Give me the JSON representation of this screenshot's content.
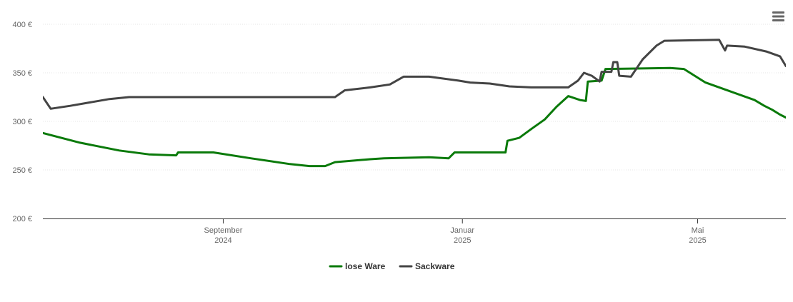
{
  "chart_data": {
    "type": "line",
    "y_ticks": [
      "200 €",
      "250 €",
      "300 €",
      "350 €",
      "400 €"
    ],
    "y_tick_values": [
      200,
      250,
      300,
      350,
      400
    ],
    "ylim": [
      200,
      400
    ],
    "xlim": [
      "2024-06-01",
      "2025-06-15"
    ],
    "x_ticks": [
      {
        "date": "2024-09-01",
        "line1": "September",
        "line2": "2024"
      },
      {
        "date": "2025-01-01",
        "line1": "Januar",
        "line2": "2025"
      },
      {
        "date": "2025-05-01",
        "line1": "Mai",
        "line2": "2025"
      }
    ],
    "grid": true,
    "legend_position": "bottom-center",
    "series": [
      {
        "name": "lose Ware",
        "color": "#0a7a0a",
        "points": [
          [
            "2024-06-01",
            288
          ],
          [
            "2024-06-20",
            278
          ],
          [
            "2024-07-10",
            270
          ],
          [
            "2024-07-25",
            266
          ],
          [
            "2024-08-08",
            265
          ],
          [
            "2024-08-09",
            268
          ],
          [
            "2024-08-27",
            268
          ],
          [
            "2024-09-15",
            262
          ],
          [
            "2024-10-05",
            256
          ],
          [
            "2024-10-15",
            254
          ],
          [
            "2024-10-23",
            254
          ],
          [
            "2024-10-28",
            258
          ],
          [
            "2024-11-15",
            261
          ],
          [
            "2024-11-22",
            262
          ],
          [
            "2024-12-15",
            263
          ],
          [
            "2024-12-25",
            262
          ],
          [
            "2024-12-28",
            268
          ],
          [
            "2025-01-23",
            268
          ],
          [
            "2025-01-24",
            280
          ],
          [
            "2025-01-30",
            283
          ],
          [
            "2025-02-05",
            292
          ],
          [
            "2025-02-12",
            302
          ],
          [
            "2025-02-18",
            315
          ],
          [
            "2025-02-24",
            326
          ],
          [
            "2025-03-02",
            322
          ],
          [
            "2025-03-05",
            321
          ],
          [
            "2025-03-06",
            341
          ],
          [
            "2025-03-13",
            342
          ],
          [
            "2025-03-15",
            354
          ],
          [
            "2025-04-17",
            355
          ],
          [
            "2025-04-24",
            354
          ],
          [
            "2025-05-05",
            340
          ],
          [
            "2025-05-30",
            322
          ],
          [
            "2025-06-04",
            316
          ],
          [
            "2025-06-08",
            312
          ],
          [
            "2025-06-12",
            307
          ],
          [
            "2025-06-15",
            304
          ]
        ]
      },
      {
        "name": "Sackware",
        "color": "#444444",
        "points": [
          [
            "2024-06-01",
            325
          ],
          [
            "2024-06-05",
            313
          ],
          [
            "2024-06-15",
            316
          ],
          [
            "2024-07-05",
            323
          ],
          [
            "2024-07-15",
            325
          ],
          [
            "2024-10-28",
            325
          ],
          [
            "2024-11-02",
            332
          ],
          [
            "2024-11-15",
            335
          ],
          [
            "2024-11-25",
            338
          ],
          [
            "2024-12-02",
            346
          ],
          [
            "2024-12-15",
            346
          ],
          [
            "2024-12-30",
            342
          ],
          [
            "2025-01-05",
            340
          ],
          [
            "2025-01-15",
            339
          ],
          [
            "2025-01-25",
            336
          ],
          [
            "2025-02-05",
            335
          ],
          [
            "2025-02-20",
            335
          ],
          [
            "2025-02-24",
            335
          ],
          [
            "2025-03-01",
            342
          ],
          [
            "2025-03-04",
            350
          ],
          [
            "2025-03-08",
            347
          ],
          [
            "2025-03-12",
            341
          ],
          [
            "2025-03-13",
            351
          ],
          [
            "2025-03-18",
            351
          ],
          [
            "2025-03-19",
            361
          ],
          [
            "2025-03-21",
            361
          ],
          [
            "2025-03-22",
            347
          ],
          [
            "2025-03-28",
            346
          ],
          [
            "2025-04-03",
            364
          ],
          [
            "2025-04-10",
            378
          ],
          [
            "2025-04-14",
            383
          ],
          [
            "2025-05-12",
            384
          ],
          [
            "2025-05-15",
            373
          ],
          [
            "2025-05-16",
            378
          ],
          [
            "2025-05-25",
            377
          ],
          [
            "2025-06-05",
            372
          ],
          [
            "2025-06-12",
            367
          ],
          [
            "2025-06-15",
            357
          ]
        ]
      }
    ]
  },
  "menu_icon": "hamburger-menu-icon"
}
